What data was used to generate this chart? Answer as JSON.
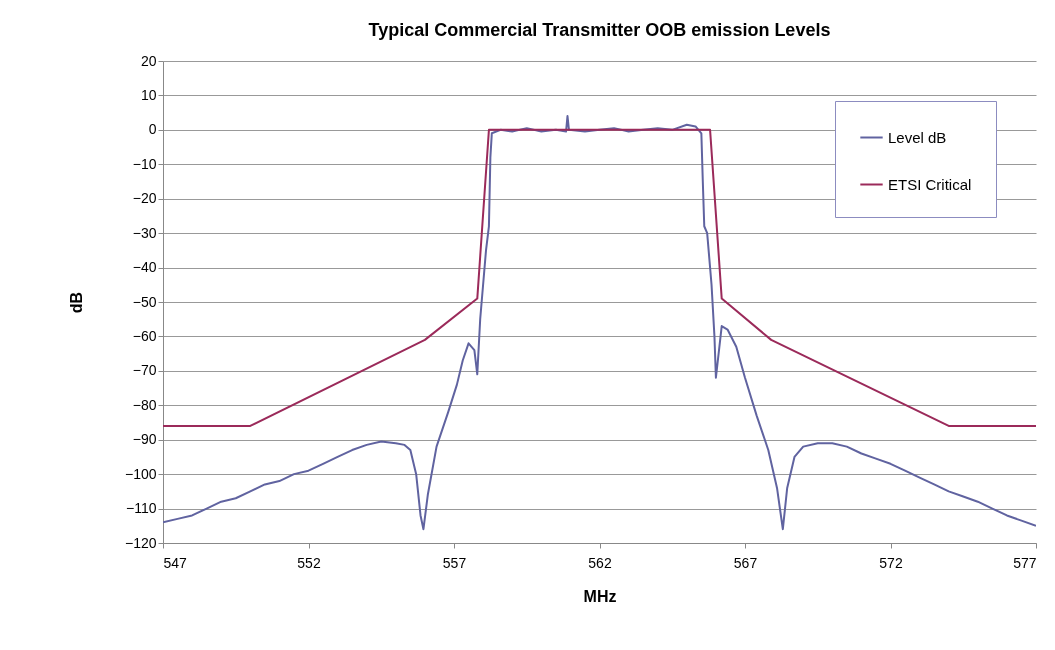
{
  "chart_data": {
    "type": "line",
    "title": "Typical  Commercial Transmitter OOB emission Levels",
    "xlabel": "MHz",
    "ylabel": "dB",
    "xlim": [
      547,
      577
    ],
    "xticks": [
      547,
      552,
      557,
      562,
      567,
      572,
      577
    ],
    "ylim": [
      -120,
      20
    ],
    "yticks": [
      20,
      10,
      0,
      -10,
      -20,
      -30,
      -40,
      -50,
      -60,
      -70,
      -80,
      -90,
      -100,
      -110,
      -120
    ],
    "grid": "y",
    "legend": "top right",
    "marker": "none",
    "line_style": "solid",
    "series": [
      {
        "name": "Level dB",
        "color": "#6063a0",
        "x": [
          547,
          547.5,
          548,
          548.5,
          549,
          549.5,
          550,
          550.5,
          551,
          551.5,
          552,
          552.5,
          553,
          553.5,
          554,
          554.5,
          555,
          555.3,
          555.5,
          555.7,
          555.85,
          555.95,
          556.1,
          556.4,
          556.8,
          557.1,
          557.3,
          557.5,
          557.7,
          557.8,
          557.9,
          558,
          558.1,
          558.2,
          558.25,
          558.3,
          558.6,
          559,
          559.5,
          560,
          560.5,
          560.85,
          560.9,
          560.95,
          561.5,
          562,
          562.5,
          563,
          563.5,
          564,
          564.5,
          565,
          565.3,
          565.4,
          565.5,
          565.55,
          565.6,
          565.7,
          565.85,
          565.95,
          566,
          566.2,
          566.4,
          566.7,
          567,
          567.4,
          567.8,
          568.1,
          568.3,
          568.45,
          568.7,
          569,
          569.5,
          570,
          570.5,
          571,
          571.5,
          572,
          572.5,
          573,
          573.5,
          574,
          574.5,
          575,
          575.5,
          576,
          576.5,
          577
        ],
        "values": [
          -114,
          -113,
          -112,
          -110,
          -108,
          -107,
          -105,
          -103,
          -102,
          -100,
          -99,
          -97,
          -95,
          -93,
          -91.5,
          -90.5,
          -91,
          -91.5,
          -93,
          -100,
          -112,
          -116,
          -106,
          -92,
          -82,
          -74,
          -67,
          -62,
          -64,
          -71,
          -55,
          -45,
          -35,
          -28,
          -8,
          -1,
          0,
          -0.5,
          0.5,
          -0.5,
          0,
          -0.5,
          4,
          0,
          -0.5,
          0,
          0.5,
          -0.5,
          0,
          0.5,
          0,
          1.5,
          1,
          0,
          -1,
          -15,
          -28,
          -30,
          -45,
          -60,
          -72,
          -57,
          -58,
          -63,
          -72,
          -83,
          -93,
          -104,
          -116,
          -104,
          -95,
          -92,
          -91,
          -91,
          -92,
          -94,
          -95.5,
          -97,
          -99,
          -101,
          -103,
          -105,
          -106.5,
          -108,
          -110,
          -112,
          -113.5,
          -115
        ]
      },
      {
        "name": "ETSI Critical",
        "color": "#9b2a5a",
        "x": [
          547,
          550,
          556,
          557.8,
          558.2,
          565.8,
          566.2,
          567.9,
          574,
          577
        ],
        "values": [
          -86,
          -86,
          -61,
          -49,
          0,
          0,
          -49,
          -61,
          -86,
          -86
        ]
      }
    ]
  }
}
